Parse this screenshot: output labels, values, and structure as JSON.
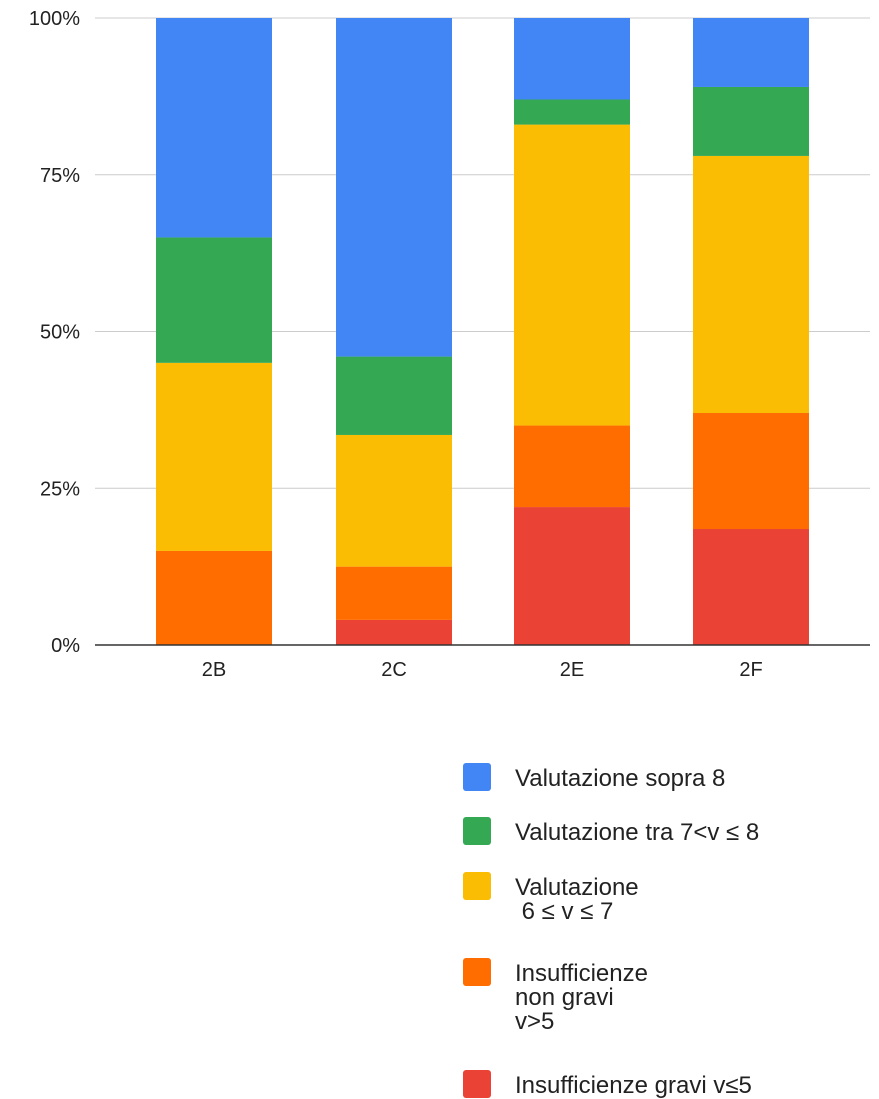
{
  "chart_data": {
    "type": "bar",
    "stacked": true,
    "normalized": true,
    "categories": [
      "2B",
      "2C",
      "2E",
      "2F"
    ],
    "y_ticks": [
      "0%",
      "25%",
      "50%",
      "75%",
      "100%"
    ],
    "y_tick_values": [
      0,
      25,
      50,
      75,
      100
    ],
    "ylim": [
      0,
      100
    ],
    "grid": true,
    "legend_position": "bottom-right",
    "series": [
      {
        "name_lines": [
          "Insufficienze gravi v≤5"
        ],
        "color": "#ea4335",
        "values": [
          0,
          4,
          22,
          18.5
        ]
      },
      {
        "name_lines": [
          "Insufficienze",
          "non gravi",
          "v>5"
        ],
        "color": "#ff6d01",
        "values": [
          15,
          8.5,
          13,
          18.5
        ]
      },
      {
        "name_lines": [
          "Valutazione",
          " 6 ≤ v ≤ 7"
        ],
        "color": "#fbbc04",
        "values": [
          30,
          21,
          48,
          41
        ]
      },
      {
        "name_lines": [
          "Valutazione tra 7<v ≤ 8"
        ],
        "color": "#34a853",
        "values": [
          20,
          12.5,
          4,
          11
        ]
      },
      {
        "name_lines": [
          "Valutazione sopra 8"
        ],
        "color": "#4285f4",
        "values": [
          35,
          54,
          13,
          11
        ]
      }
    ]
  }
}
